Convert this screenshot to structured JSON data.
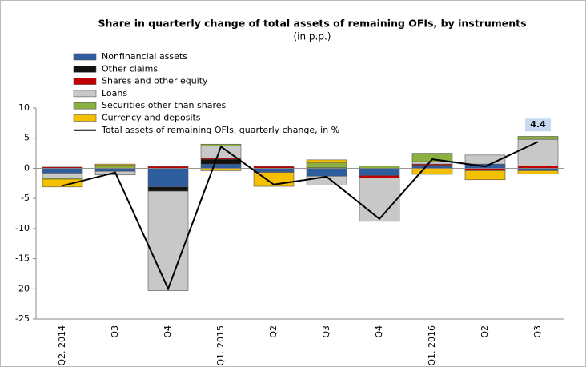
{
  "chart_data": {
    "type": "bar",
    "title": "Share in quarterly change of total assets of remaining OFIs, by instruments",
    "subtitle": "(in p.p.)",
    "categories": [
      "Q2. 2014",
      "Q3",
      "Q4",
      "Q1. 2015",
      "Q2",
      "Q3",
      "Q4",
      "Q1. 2016",
      "Q2",
      "Q3"
    ],
    "ylim": [
      -25,
      10
    ],
    "yticks": [
      -25,
      -20,
      -15,
      -10,
      -5,
      0,
      5,
      10
    ],
    "stacked": true,
    "grid": false,
    "legend": "top-left",
    "series": [
      {
        "name": "Nonfinancial assets",
        "color": "#2e5d9e",
        "values": [
          -0.8,
          -0.5,
          -3.1,
          0.7,
          -0.6,
          -1.3,
          -1.2,
          0.5,
          0.7,
          -0.4
        ]
      },
      {
        "name": "Other claims",
        "color": "#111111",
        "values": [
          0,
          0,
          -0.7,
          0.8,
          0,
          0,
          0,
          0,
          0,
          0
        ]
      },
      {
        "name": "Shares and other equity",
        "color": "#c00000",
        "values": [
          0.2,
          0,
          0.3,
          0.2,
          0.3,
          0.1,
          -0.4,
          0.2,
          -0.4,
          0.4
        ]
      },
      {
        "name": "Loans",
        "color": "#c8c8c8",
        "values": [
          -0.8,
          -0.6,
          -16.5,
          2.0,
          -0.1,
          -1.5,
          -7.2,
          0.4,
          1.5,
          4.4
        ]
      },
      {
        "name": "Securities other than shares",
        "color": "#8cb040",
        "values": [
          -0.2,
          0.5,
          0.1,
          0.3,
          0,
          0.8,
          0.4,
          1.4,
          0,
          0.5
        ]
      },
      {
        "name": "Currency and deposits",
        "color": "#f5c000",
        "values": [
          -1.3,
          0.2,
          0,
          -0.4,
          -2.3,
          0.5,
          0,
          -1.0,
          -1.5,
          -0.5
        ]
      },
      {
        "name": "Total assets of remaining OFIs, quarterly change, in %",
        "color": "#000000",
        "type": "line",
        "values": [
          -2.9,
          -0.7,
          -20.0,
          3.6,
          -2.7,
          -1.4,
          -8.4,
          1.5,
          0.3,
          4.4
        ],
        "value_labels": [
          null,
          null,
          null,
          null,
          null,
          null,
          null,
          null,
          null,
          "4.4"
        ]
      }
    ]
  }
}
